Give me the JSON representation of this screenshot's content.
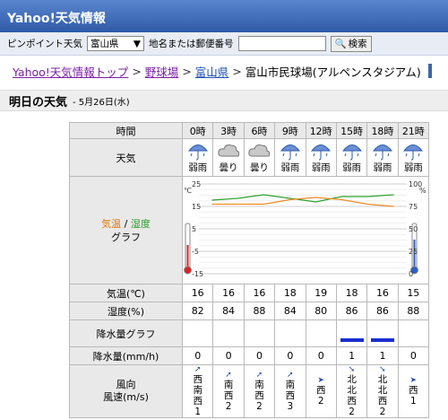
{
  "header": {
    "title": "Yahoo!天気情報"
  },
  "search": {
    "point_label": "ピンポイント天気",
    "pref_selected": "富山県",
    "place_label": "地名または郵便番号",
    "input_value": "",
    "button_label": "検索"
  },
  "breadcrumb": {
    "items": [
      "Yahoo!天気情報トップ",
      "野球場",
      "富山県",
      "富山市民球場(アルペンスタジアム)"
    ],
    "sep": ">"
  },
  "section": {
    "title": "明日の天気",
    "date": "- 5月26日(水)"
  },
  "table": {
    "time_label": "時間",
    "times": [
      "0時",
      "3時",
      "6時",
      "9時",
      "12時",
      "15時",
      "18時",
      "21時"
    ],
    "weather_label": "天気",
    "weather": [
      "弱雨",
      "曇り",
      "曇り",
      "弱雨",
      "弱雨",
      "弱雨",
      "弱雨",
      "弱雨"
    ],
    "weather_icons": [
      "umbrella-icon",
      "cloud-icon",
      "cloud-icon",
      "umbrella-icon",
      "umbrella-icon",
      "umbrella-icon",
      "umbrella-icon",
      "umbrella-icon"
    ],
    "graph_label_temp": "気温",
    "graph_label_sep": "/",
    "graph_label_hum": "湿度",
    "graph_label_graph": "グラフ",
    "graph_left_ticks": [
      "25",
      "15",
      "5",
      "-5",
      "-15"
    ],
    "graph_left_unit": "℃",
    "graph_right_ticks": [
      "100",
      "75",
      "50",
      "25",
      "0"
    ],
    "graph_right_unit": "%",
    "temp_label": "気温(℃)",
    "temp": [
      "16",
      "16",
      "16",
      "18",
      "19",
      "18",
      "16",
      "15"
    ],
    "hum_label": "湿度(%)",
    "hum": [
      "82",
      "84",
      "88",
      "84",
      "80",
      "86",
      "86",
      "88"
    ],
    "precip_graph_label": "降水量グラフ",
    "precip_label": "降水量(mm/h)",
    "precip": [
      "0",
      "0",
      "0",
      "0",
      "0",
      "1",
      "1",
      "0"
    ],
    "wind_label_1": "風向",
    "wind_label_2": "風速(m/s)",
    "wind_dir": [
      [
        "西",
        "南",
        "西"
      ],
      [
        "南",
        "西"
      ],
      [
        "南",
        "西"
      ],
      [
        "南",
        "西"
      ],
      [
        "西"
      ],
      [
        "北",
        "北",
        "西"
      ],
      [
        "北",
        "北",
        "西"
      ],
      [
        "西"
      ]
    ],
    "wind_speed": [
      "1",
      "2",
      "2",
      "3",
      "2",
      "2",
      "2",
      "1"
    ],
    "wind_arrows": [
      "➚",
      "➚",
      "➚",
      "➚",
      "➤",
      "➘",
      "➘",
      "➤"
    ]
  },
  "colors": {
    "temp_line": "#f08a24",
    "hum_line": "#2fa12f",
    "accent": "#2e5aa8",
    "rain_bar": "#1a2fd0"
  }
}
